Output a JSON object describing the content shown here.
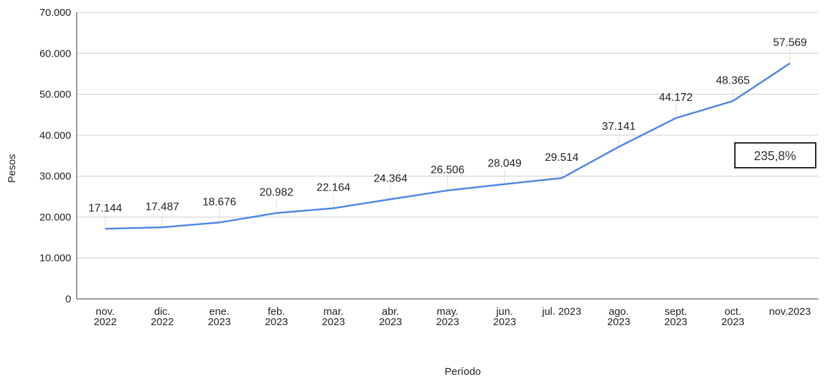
{
  "chart_data": {
    "type": "line",
    "categories": [
      [
        "nov.",
        "2022"
      ],
      [
        "dic.",
        "2022"
      ],
      [
        "ene.",
        "2023"
      ],
      [
        "feb.",
        "2023"
      ],
      [
        "mar.",
        "2023"
      ],
      [
        "abr.",
        "2023"
      ],
      [
        "may.",
        "2023"
      ],
      [
        "jun.",
        "2023"
      ],
      [
        "jul. 2023"
      ],
      [
        "ago.",
        "2023"
      ],
      [
        "sept.",
        "2023"
      ],
      [
        "oct.",
        "2023"
      ],
      [
        "nov.2023"
      ]
    ],
    "series": [
      {
        "values": [
          17144,
          17487,
          18676,
          20982,
          22164,
          24364,
          26506,
          28049,
          29514,
          37141,
          44172,
          48365,
          57569
        ],
        "labels": [
          "17.144",
          "17.487",
          "18.676",
          "20.982",
          "22.164",
          "24.364",
          "26.506",
          "28.049",
          "29.514",
          "37.141",
          "44.172",
          "48.365",
          "57.569"
        ],
        "color": "#4a86e8"
      }
    ],
    "xlabel": "Período",
    "ylabel": "Pesos",
    "ylim": [
      0,
      70000
    ],
    "yticks": [
      0,
      10000,
      20000,
      30000,
      40000,
      50000,
      60000,
      70000
    ],
    "ytick_labels": [
      "0",
      "10.000",
      "20.000",
      "30.000",
      "40.000",
      "50.000",
      "60.000",
      "70.000"
    ],
    "grid": true,
    "annotation": "235,8%"
  }
}
